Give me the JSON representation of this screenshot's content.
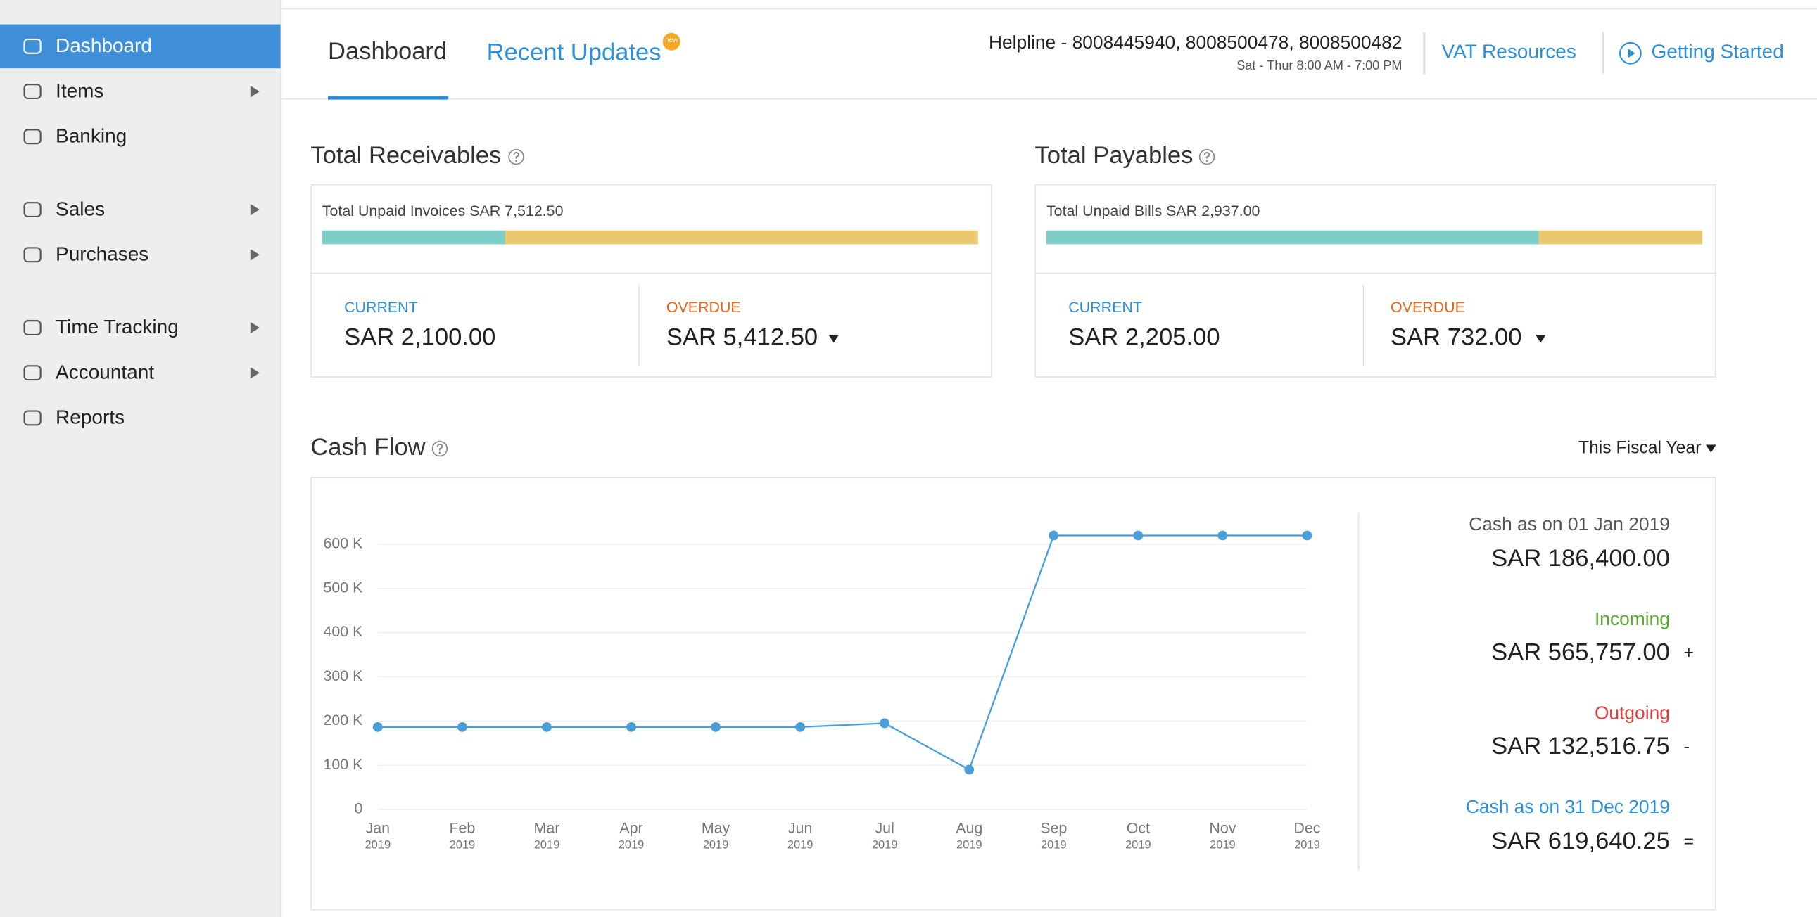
{
  "sidebar": {
    "items": [
      {
        "label": "Dashboard",
        "active": true
      },
      {
        "label": "Items",
        "submenu": true
      },
      {
        "label": "Banking"
      },
      {
        "label": "Sales",
        "submenu": true
      },
      {
        "label": "Purchases",
        "submenu": true
      },
      {
        "label": "Time Tracking",
        "submenu": true
      },
      {
        "label": "Accountant",
        "submenu": true
      },
      {
        "label": "Reports"
      }
    ]
  },
  "tabs": [
    "Dashboard",
    "Recent Updates"
  ],
  "badge": "new",
  "helpline": {
    "numbers": "Helpline - 8008445940, 8008500478, 8008500482",
    "hours": "Sat - Thur 8:00 AM - 7:00 PM"
  },
  "links": [
    "VAT Resources",
    "Getting Started"
  ],
  "receivables": {
    "title": "Total Receivables",
    "summary": "Total Unpaid Invoices SAR 7,512.50",
    "labels": [
      "CURRENT",
      "OVERDUE"
    ],
    "values": [
      2100,
      5412.5
    ],
    "value_labels": [
      "SAR 2,100.00",
      "SAR 5,412.50"
    ],
    "colors": [
      "#7ecdc8",
      "#ebc86e"
    ]
  },
  "payables": {
    "title": "Total Payables",
    "summary": "Total Unpaid Bills SAR 2,937.00",
    "labels": [
      "CURRENT",
      "OVERDUE"
    ],
    "values": [
      2205,
      732
    ],
    "value_labels": [
      "SAR 2,205.00",
      "SAR 732.00"
    ],
    "colors": [
      "#7ecdc8",
      "#ebc86e"
    ]
  },
  "cash_flow": {
    "title": "Cash Flow",
    "period": "This Fiscal Year",
    "summary": [
      {
        "label": "Cash as on 01 Jan 2019",
        "amount": "SAR 186,400.00",
        "color": "#555555"
      },
      {
        "label": "Incoming",
        "amount": "SAR 565,757.00",
        "sign": "+",
        "color": "#5aa832"
      },
      {
        "label": "Outgoing",
        "amount": "SAR 132,516.75",
        "sign": "-",
        "color": "#e0413d"
      },
      {
        "label": "Cash as on 31 Dec 2019",
        "amount": "SAR 619,640.25",
        "sign": "=",
        "color": "#2d8fd5"
      }
    ]
  },
  "chart_data": {
    "type": "line",
    "categories": [
      "Jan",
      "Feb",
      "Mar",
      "Apr",
      "May",
      "Jun",
      "Jul",
      "Aug",
      "Sep",
      "Oct",
      "Nov",
      "Dec"
    ],
    "category_years": [
      "2019",
      "2019",
      "2019",
      "2019",
      "2019",
      "2019",
      "2019",
      "2019",
      "2019",
      "2019",
      "2019",
      "2019"
    ],
    "series": [
      {
        "color": "#4a9fd8",
        "values": [
          186400,
          186400,
          186400,
          186400,
          186400,
          186400,
          195000,
          90000,
          619640,
          619640,
          619640,
          619640
        ]
      }
    ],
    "ylim": [
      0,
      630000
    ],
    "yticks": [
      0,
      {
        "value": 100000,
        "label": "100 K"
      },
      {
        "value": 200000,
        "label": "200 K"
      },
      {
        "value": 300000,
        "label": "300 K"
      },
      {
        "value": 400000,
        "label": "400 K"
      },
      {
        "value": 500000,
        "label": "500 K"
      },
      {
        "value": 600000,
        "label": "600 K"
      }
    ],
    "grid": true
  }
}
